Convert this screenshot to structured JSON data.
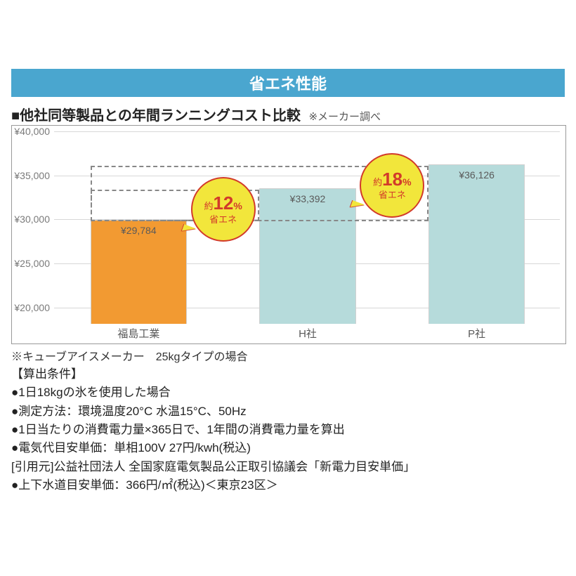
{
  "banner": {
    "title": "省エネ性能",
    "bg": "#4aa6cf",
    "fg": "#ffffff"
  },
  "heading": {
    "main": "■他社同等製品との年間ランニングコスト比較",
    "note": "※メーカー調べ"
  },
  "chart": {
    "type": "bar",
    "ylim": [
      18000,
      40000
    ],
    "ytick_step": 5000,
    "ytick_labels": [
      "¥20,000",
      "¥25,000",
      "¥30,000",
      "¥35,000",
      "¥40,000"
    ],
    "ytick_values": [
      20000,
      25000,
      30000,
      35000,
      40000
    ],
    "grid_color": "#d7d7d7",
    "border_color": "#999999",
    "bg": "#ffffff",
    "label_color": "#7a7a7a",
    "label_fontsize": 14,
    "cat_fontsize": 15,
    "value_fontsize": 14,
    "bar_width_pct": 19,
    "categories": [
      "福島工業",
      "H社",
      "P社"
    ],
    "values": [
      29784,
      33392,
      36126
    ],
    "value_labels": [
      "¥29,784",
      "¥33,392",
      "¥36,126"
    ],
    "bar_colors": [
      "#f29a32",
      "#b6dbdb",
      "#b6dbdb"
    ],
    "bar_border": "#d0d0d0",
    "dashed_color": "#888888",
    "dashed_levels": [
      33392,
      36126
    ]
  },
  "bubbles": [
    {
      "prefix": "約",
      "pct": "12",
      "unit": "%",
      "sub": "省エネ",
      "fill": "#f2e63b",
      "border": "#d23a2a",
      "text": "#d23a2a",
      "anchor_between": [
        0,
        1
      ]
    },
    {
      "prefix": "約",
      "pct": "18",
      "unit": "%",
      "sub": "省エネ",
      "fill": "#f2e63b",
      "border": "#d23a2a",
      "text": "#d23a2a",
      "anchor_between": [
        1,
        2
      ]
    }
  ],
  "footnote": "※キューブアイスメーカー　25kgタイプの場合",
  "conditions": {
    "title": "【算出条件】",
    "lines": [
      "●1日18kgの氷を使用した場合",
      "●測定方法：環境温度20°C 水温15°C、50Hz",
      "●1日当たりの消費電力量×365日で、1年間の消費電力量を算出",
      "●電気代目安単価：単相100V 27円/kwh(税込)",
      "[引用元]公益社団法人 全国家庭電気製品公正取引協議会「新電力目安単価」",
      "●上下水道目安単価：366円/㎡(税込)＜東京23区＞"
    ]
  }
}
